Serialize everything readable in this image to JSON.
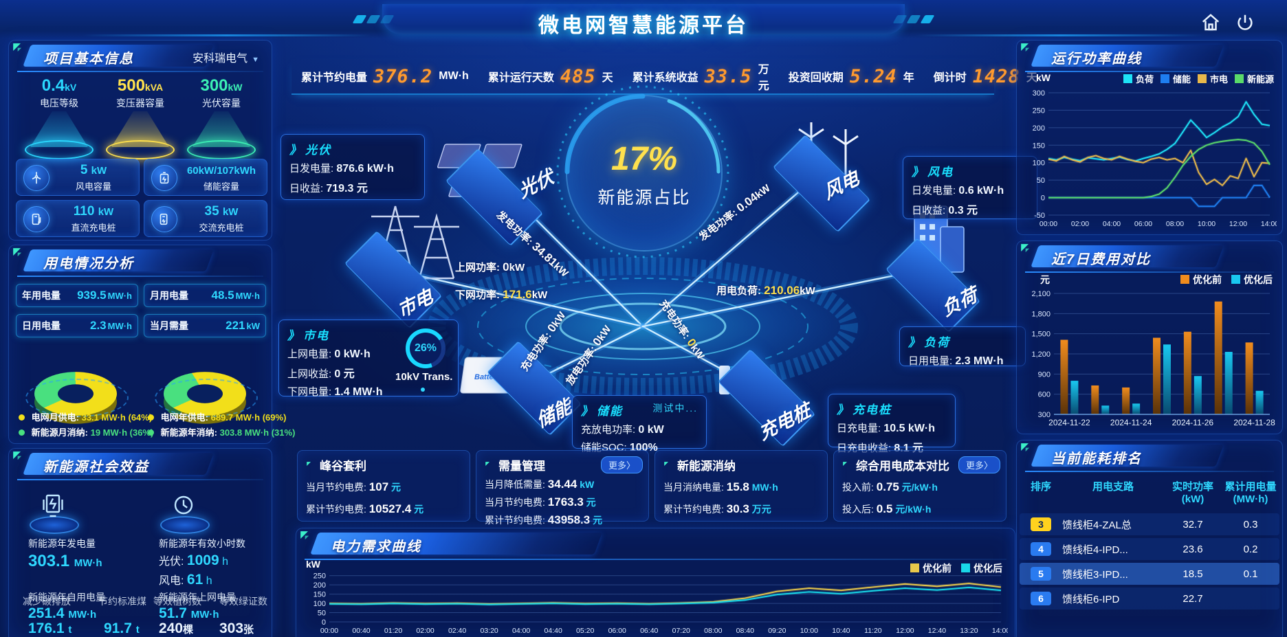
{
  "header": {
    "title": "微电网智慧能源平台"
  },
  "top_stats": [
    {
      "label": "累计节约电量",
      "value": "376.2",
      "unit": "MW·h"
    },
    {
      "label": "累计运行天数",
      "value": "485",
      "unit": "天"
    },
    {
      "label": "累计系统收益",
      "value": "33.5",
      "unit": "万元"
    },
    {
      "label": "投资回收期",
      "value": "5.24",
      "unit": "年"
    },
    {
      "label": "倒计时",
      "value": "1428",
      "unit": "天"
    }
  ],
  "project": {
    "title": "项目基本信息",
    "company": "安科瑞电气",
    "podiums": [
      {
        "value": "0.4",
        "unit": "kV",
        "label": "电压等级",
        "color": "#2ad8ff"
      },
      {
        "value": "500",
        "unit": "kVA",
        "label": "变压器容量",
        "color": "#ffe14d"
      },
      {
        "value": "300",
        "unit": "kW",
        "label": "光伏容量",
        "color": "#3cf0b4"
      }
    ],
    "cards": [
      {
        "value": "5",
        "unit": "kW",
        "label": "风电容量",
        "icon": "wind-turbine-icon"
      },
      {
        "value": "60kW/107kWh",
        "unit": "",
        "label": "储能容量",
        "icon": "battery-icon"
      },
      {
        "value": "110",
        "unit": "kW",
        "label": "直流充电桩",
        "icon": "dc-charger-icon"
      },
      {
        "value": "35",
        "unit": "kW",
        "label": "交流充电桩",
        "icon": "ac-charger-icon"
      }
    ]
  },
  "usage": {
    "title": "用电情况分析",
    "pills": [
      {
        "label": "年用电量",
        "value": "939.5",
        "unit": "MW·h"
      },
      {
        "label": "月用电量",
        "value": "48.5",
        "unit": "MW·h"
      },
      {
        "label": "日用电量",
        "value": "2.3",
        "unit": "MW·h"
      },
      {
        "label": "当月需量",
        "value": "221",
        "unit": "kW"
      }
    ],
    "donut_month": {
      "grid_pct": 64,
      "renew_pct": 36,
      "legend": [
        {
          "label": "电网月供电:",
          "value": "33.1 MW·h (64%)",
          "color": "#f2df1a"
        },
        {
          "label": "新能源月消纳:",
          "value": "19 MW·h (36%)",
          "color": "#49e07f"
        }
      ]
    },
    "donut_year": {
      "grid_pct": 69,
      "renew_pct": 31,
      "legend": [
        {
          "label": "电网年供电:",
          "value": "689.7 MW·h (69%)",
          "color": "#f2df1a"
        },
        {
          "label": "新能源年消纳:",
          "value": "303.8 MW·h (31%)",
          "color": "#49e07f"
        }
      ]
    }
  },
  "social": {
    "title": "新能源社会效益",
    "gen": {
      "label": "新能源年发电量",
      "value": "303.1",
      "unit": "MW·h"
    },
    "hours": {
      "label": "新能源年有效小时数",
      "pv_label": "光伏:",
      "pv_value": "1009",
      "pv_unit": "h",
      "wind_label": "风电:",
      "wind_value": "61",
      "wind_unit": "h"
    },
    "self_use": {
      "label": "新能源年自用电量",
      "overlay1": "减少碳排放",
      "overlay2": "节约标准煤",
      "value": "251.4",
      "unit": "MW·h",
      "coal": "176.1",
      "coal_unit": "t",
      "co2": "91.7",
      "co2_unit": "t"
    },
    "feed_in": {
      "label": "新能源年上网电量",
      "overlay1": "等效植树数",
      "overlay2": "等效绿证数",
      "value": "51.7",
      "unit": "MW·h",
      "trees": "240",
      "trees_unit": "棵",
      "certs": "303",
      "certs_unit": "张"
    }
  },
  "diagram": {
    "center_value": "17%",
    "center_label": "新能源占比",
    "nodes": {
      "pv": "光伏",
      "wind": "风电",
      "grid": "市电",
      "storage": "储能",
      "ev": "充电桩",
      "load": "负荷"
    },
    "flows": {
      "pv_gen": {
        "label": "发电功率:",
        "value": "34.81",
        "unit": "kW"
      },
      "wind_gen": {
        "label": "发电功率:",
        "value": "0.04",
        "unit": "kW"
      },
      "feed_in": {
        "label": "上网功率:",
        "value": "0",
        "unit": "kW"
      },
      "draw": {
        "label": "下网功率:",
        "value": "171.6",
        "unit": "kW"
      },
      "load": {
        "label": "用电负荷:",
        "value": "210.06",
        "unit": "kW"
      },
      "st_charge": {
        "label": "充电功率:",
        "value": "0",
        "unit": "kW"
      },
      "st_discharge": {
        "label": "放电功率:",
        "value": "0",
        "unit": "kW"
      },
      "ev_charge": {
        "label": "充电功率:",
        "value": "0",
        "unit": "kW"
      }
    },
    "boxes": {
      "pv": {
        "title": "光伏",
        "rows": [
          {
            "label": "日发电量:",
            "value": "876.6 kW·h"
          },
          {
            "label": "日收益:",
            "value": "719.3 元"
          }
        ]
      },
      "wind": {
        "title": "风电",
        "rows": [
          {
            "label": "日发电量:",
            "value": "0.6 kW·h"
          },
          {
            "label": "日收益:",
            "value": "0.3 元"
          }
        ]
      },
      "grid": {
        "title": "市电",
        "rows": [
          {
            "label": "上网电量:",
            "value": "0 kW·h"
          },
          {
            "label": "上网收益:",
            "value": "0 元"
          },
          {
            "label": "下网电量:",
            "value": "1.4 MW·h"
          }
        ],
        "trans_pct": "26%",
        "trans_label": "10kV Trans."
      },
      "storage": {
        "title": "储能",
        "badge": "测试中...",
        "rows": [
          {
            "label": "充放电功率:",
            "value": "0 kW"
          },
          {
            "label": "储能SOC:",
            "value": "100%"
          }
        ]
      },
      "ev": {
        "title": "充电桩",
        "rows": [
          {
            "label": "日充电量:",
            "value": "10.5 kW·h"
          },
          {
            "label": "日充电收益:",
            "value": "8.1 元"
          }
        ]
      },
      "load": {
        "title": "负荷",
        "rows": [
          {
            "label": "日用电量:",
            "value": "2.3 MW·h"
          }
        ]
      }
    }
  },
  "benefit_cards": [
    {
      "title": "峰谷套利",
      "more": "",
      "rows": [
        {
          "label": "当月节约电费:",
          "value": "107",
          "unit": "元"
        },
        {
          "label": "累计节约电费:",
          "value": "10527.4",
          "unit": "元"
        }
      ]
    },
    {
      "title": "需量管理",
      "more": "更多〉",
      "rows": [
        {
          "label": "当月降低需量:",
          "value": "34.44",
          "unit": "kW"
        },
        {
          "label": "当月节约电费:",
          "value": "1763.3",
          "unit": "元"
        },
        {
          "label": "累计节约电费:",
          "value": "43958.3",
          "unit": "元"
        }
      ]
    },
    {
      "title": "新能源消纳",
      "more": "",
      "rows": [
        {
          "label": "当月消纳电量:",
          "value": "15.8",
          "unit": "MW·h"
        },
        {
          "label": "累计节约电费:",
          "value": "30.3",
          "unit": "万元"
        }
      ]
    },
    {
      "title": "综合用电成本对比",
      "more": "更多〉",
      "rows": [
        {
          "label": "投入前:",
          "value": "0.75",
          "unit": "元/kW·h"
        },
        {
          "label": "投入后:",
          "value": "0.5",
          "unit": "元/kW·h"
        }
      ]
    }
  ],
  "right": {
    "power_title": "运行功率曲线",
    "cost_title": "近7日费用对比",
    "rank": {
      "title": "当前能耗排名",
      "col_rank": "排序",
      "col_branch": "用电支路",
      "col_power": "实时功率",
      "col_power_unit": "(kW)",
      "col_energy": "累计用电量",
      "col_energy_unit": "(MW·h)",
      "rows": [
        {
          "rank": "3",
          "branch": "馈线柜4-ZAL总",
          "power": "32.7",
          "energy": "0.3"
        },
        {
          "rank": "4",
          "branch": "馈线柜4-IPD...",
          "power": "23.6",
          "energy": "0.2"
        },
        {
          "rank": "5",
          "branch": "馈线柜3-IPD...",
          "power": "18.5",
          "energy": "0.1"
        },
        {
          "rank": "6",
          "branch": "馈线柜6-IPD",
          "power": "22.7",
          "energy": ""
        }
      ]
    }
  },
  "chart_data": [
    {
      "id": "power-curve",
      "type": "line",
      "title": "运行功率曲线",
      "ylabel": "kW",
      "ylim": [
        -50,
        300
      ],
      "yticks": [
        -50,
        0,
        50,
        100,
        150,
        200,
        250,
        300
      ],
      "x_labels": [
        "00:00",
        "02:00",
        "04:00",
        "06:00",
        "08:00",
        "10:00",
        "12:00",
        "14:00"
      ],
      "legend_position": "top",
      "series": [
        {
          "name": "负荷",
          "color": "#1ee3f7",
          "values": [
            112,
            108,
            115,
            110,
            106,
            114,
            111,
            108,
            112,
            116,
            109,
            105,
            112,
            118,
            125,
            138,
            155,
            188,
            222,
            198,
            172,
            186,
            202,
            214,
            232,
            274,
            238,
            210,
            206
          ]
        },
        {
          "name": "储能",
          "color": "#1e7ef0",
          "values": [
            0,
            0,
            0,
            0,
            0,
            0,
            0,
            0,
            0,
            0,
            0,
            0,
            0,
            0,
            0,
            0,
            0,
            0,
            0,
            -25,
            -25,
            -25,
            0,
            0,
            0,
            0,
            35,
            35,
            0
          ]
        },
        {
          "name": "市电",
          "color": "#e8b84b",
          "values": [
            110,
            105,
            118,
            108,
            102,
            115,
            120,
            112,
            108,
            118,
            110,
            104,
            100,
            110,
            115,
            108,
            112,
            100,
            135,
            72,
            38,
            52,
            35,
            62,
            55,
            112,
            60,
            100,
            98
          ]
        },
        {
          "name": "新能源",
          "color": "#5ada6a",
          "values": [
            0,
            0,
            0,
            0,
            0,
            0,
            0,
            0,
            0,
            0,
            0,
            0,
            0,
            3,
            10,
            28,
            58,
            92,
            118,
            138,
            150,
            157,
            161,
            164,
            166,
            164,
            156,
            132,
            94
          ]
        }
      ]
    },
    {
      "id": "cost-compare",
      "type": "bar",
      "title": "近7日费用对比",
      "ylabel": "元",
      "ylim": [
        300,
        2100
      ],
      "yticks": [
        300,
        600,
        900,
        1200,
        1500,
        1800,
        2100
      ],
      "categories": [
        "2024-11-22",
        "2024-11-23",
        "2024-11-24",
        "2024-11-25",
        "2024-11-26",
        "2024-11-27",
        "2024-11-28"
      ],
      "x_tick_indices": [
        0,
        2,
        4,
        6
      ],
      "legend_position": "top",
      "series": [
        {
          "name": "优化前",
          "color": "#f08c1e",
          "values": [
            1410,
            730,
            700,
            1440,
            1530,
            1980,
            1370
          ]
        },
        {
          "name": "优化后",
          "color": "#19c8f0",
          "values": [
            800,
            430,
            460,
            1340,
            870,
            1230,
            650
          ]
        }
      ]
    },
    {
      "id": "demand-curve",
      "type": "line",
      "title": "电力需求曲线",
      "ylabel": "kW",
      "ylim": [
        0,
        260
      ],
      "yticks": [
        0,
        50,
        100,
        150,
        200,
        250
      ],
      "x_labels": [
        "00:00",
        "00:40",
        "01:20",
        "02:00",
        "02:40",
        "03:20",
        "04:00",
        "04:40",
        "05:20",
        "06:00",
        "06:40",
        "07:20",
        "08:00",
        "08:40",
        "09:20",
        "10:00",
        "10:40",
        "11:20",
        "12:00",
        "12:40",
        "13:20",
        "14:00"
      ],
      "legend_position": "top-right",
      "series": [
        {
          "name": "优化前",
          "color": "#e8c84b",
          "values": [
            100,
            98,
            102,
            99,
            101,
            97,
            100,
            103,
            99,
            101,
            98,
            102,
            108,
            128,
            165,
            182,
            170,
            188,
            205,
            192,
            208,
            188
          ]
        },
        {
          "name": "优化后",
          "color": "#19d8e8",
          "values": [
            97,
            95,
            99,
            96,
            98,
            94,
            97,
            100,
            96,
            98,
            95,
            99,
            104,
            118,
            148,
            162,
            152,
            168,
            182,
            172,
            186,
            170
          ]
        }
      ]
    }
  ]
}
